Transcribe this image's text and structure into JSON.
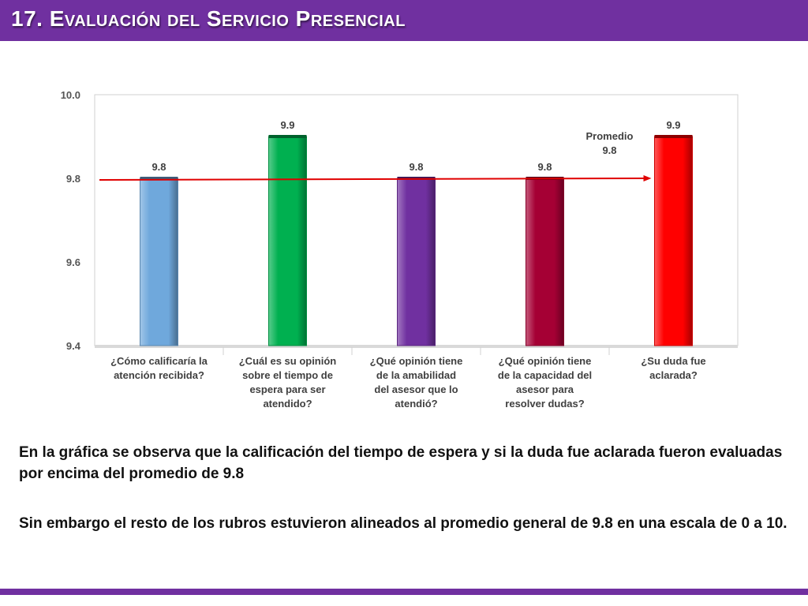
{
  "header": {
    "title": "17. Evaluación del Servicio Presencial"
  },
  "chart_data": {
    "type": "bar",
    "categories": [
      [
        "¿Cómo calificaría la",
        "atención recibida?"
      ],
      [
        "¿Cuál es su opinión",
        "sobre el tiempo de",
        "espera para ser",
        "atendido?"
      ],
      [
        "¿Qué opinión tiene",
        "de la amabilidad",
        "del asesor que lo",
        "atendió?"
      ],
      [
        "¿Qué opinión tiene",
        "de la capacidad del",
        "asesor para",
        "resolver dudas?"
      ],
      [
        "¿Su duda fue",
        "aclarada?"
      ]
    ],
    "values": [
      9.8,
      9.9,
      9.8,
      9.8,
      9.9
    ],
    "value_labels": [
      "9.8",
      "9.9",
      "9.8",
      "9.8",
      "9.9"
    ],
    "bar_colors": [
      "#6fa8dc",
      "#00b050",
      "#7030a0",
      "#a50034",
      "#ff0000"
    ],
    "ylim": [
      9.4,
      10.0
    ],
    "yticks": [
      9.4,
      9.6,
      9.8,
      10.0
    ],
    "ytick_labels": [
      "9.4",
      "9.6",
      "9.8",
      "10.0"
    ],
    "grid": false,
    "average": {
      "value": 9.8,
      "label": [
        "Promedio",
        "9.8"
      ],
      "color": "#e00000"
    }
  },
  "text": {
    "p1": "En la gráfica se observa que la calificación del tiempo de espera  y si la duda fue aclarada fueron evaluadas por encima del promedio de 9.8",
    "p2": "Sin embargo el resto de los rubros estuvieron alineados al promedio general de 9.8 en una escala de 0 a 10."
  },
  "colors": {
    "accent": "#7030a0"
  }
}
